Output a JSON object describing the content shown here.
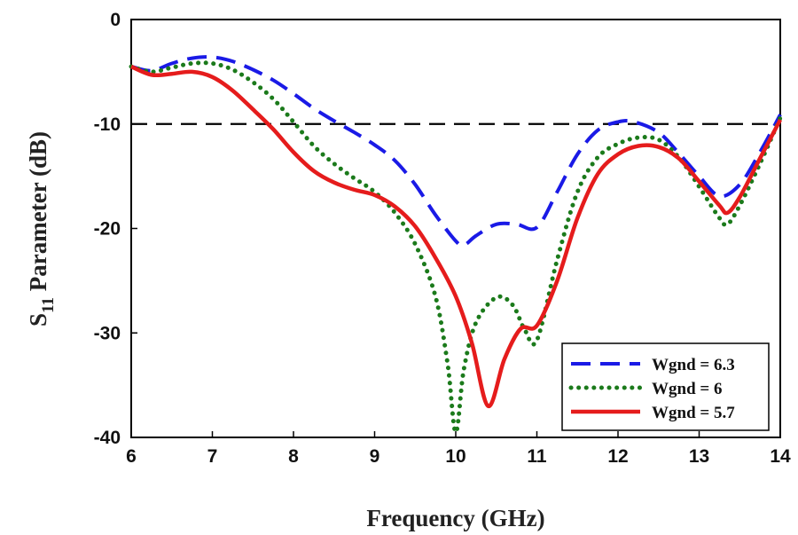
{
  "chart_data": {
    "type": "line",
    "xlabel": "Frequency (GHz)",
    "ylabel": {
      "prefix": "S",
      "subscript": "11",
      "suffix": " Parameter (dB)"
    },
    "xlim": [
      6,
      14
    ],
    "ylim": [
      -40,
      0
    ],
    "xticks": [
      6,
      7,
      8,
      9,
      10,
      11,
      12,
      13,
      14
    ],
    "yticks": [
      0,
      -10,
      -20,
      -30,
      -40
    ],
    "grid": false,
    "reference_line": {
      "y": -10,
      "style": "dashed",
      "color": "#000000"
    },
    "legend_position": "bottom-right",
    "series": [
      {
        "name": "Wgnd = 6.3",
        "color": "#1a1ae6",
        "style": "dashed",
        "x": [
          6.0,
          6.25,
          6.5,
          6.75,
          7.0,
          7.25,
          7.5,
          7.75,
          8.0,
          8.25,
          8.5,
          8.75,
          9.0,
          9.25,
          9.5,
          9.75,
          10.0,
          10.1,
          10.25,
          10.5,
          10.75,
          11.0,
          11.25,
          11.5,
          11.75,
          12.0,
          12.2,
          12.5,
          12.75,
          13.0,
          13.25,
          13.5,
          13.75,
          14.0
        ],
        "y": [
          -4.5,
          -4.9,
          -4.2,
          -3.7,
          -3.6,
          -4.0,
          -4.8,
          -5.8,
          -7.1,
          -8.5,
          -9.7,
          -10.8,
          -12.0,
          -13.5,
          -15.8,
          -18.7,
          -21.2,
          -21.6,
          -20.7,
          -19.6,
          -19.6,
          -19.9,
          -16.5,
          -12.9,
          -10.6,
          -9.8,
          -9.8,
          -10.8,
          -12.8,
          -15.0,
          -16.9,
          -15.8,
          -12.7,
          -9.1
        ]
      },
      {
        "name": "Wgnd = 6",
        "color": "#1b7a1b",
        "style": "dotted",
        "x": [
          6.0,
          6.25,
          6.5,
          6.75,
          7.0,
          7.25,
          7.5,
          7.75,
          8.0,
          8.25,
          8.5,
          8.75,
          9.0,
          9.25,
          9.5,
          9.75,
          9.9,
          10.0,
          10.1,
          10.25,
          10.5,
          10.7,
          10.85,
          11.0,
          11.25,
          11.5,
          11.75,
          12.0,
          12.25,
          12.5,
          12.75,
          13.0,
          13.25,
          13.35,
          13.5,
          13.75,
          14.0
        ],
        "y": [
          -4.5,
          -5.0,
          -4.6,
          -4.2,
          -4.2,
          -4.8,
          -6.0,
          -7.6,
          -9.8,
          -12.1,
          -13.8,
          -15.2,
          -16.5,
          -18.5,
          -21.5,
          -26.5,
          -33.0,
          -39.5,
          -33.5,
          -29.0,
          -26.6,
          -27.3,
          -29.7,
          -30.7,
          -23.0,
          -16.5,
          -13.2,
          -11.9,
          -11.3,
          -11.5,
          -13.2,
          -16.0,
          -19.0,
          -19.6,
          -17.8,
          -13.8,
          -9.4
        ]
      },
      {
        "name": "Wgnd = 5.7",
        "color": "#e51c1c",
        "style": "solid",
        "x": [
          6.0,
          6.25,
          6.5,
          6.75,
          7.0,
          7.25,
          7.5,
          7.75,
          8.0,
          8.25,
          8.5,
          8.75,
          9.0,
          9.25,
          9.5,
          9.75,
          10.0,
          10.2,
          10.4,
          10.6,
          10.8,
          11.0,
          11.25,
          11.5,
          11.75,
          12.0,
          12.25,
          12.5,
          12.75,
          13.0,
          13.25,
          13.35,
          13.5,
          13.75,
          14.0
        ],
        "y": [
          -4.5,
          -5.3,
          -5.2,
          -5.0,
          -5.5,
          -6.8,
          -8.6,
          -10.5,
          -12.7,
          -14.5,
          -15.6,
          -16.3,
          -16.8,
          -17.9,
          -19.8,
          -22.8,
          -26.5,
          -31.0,
          -37.0,
          -32.5,
          -29.6,
          -29.3,
          -25.0,
          -19.0,
          -14.8,
          -12.9,
          -12.1,
          -12.2,
          -13.3,
          -15.5,
          -17.8,
          -18.5,
          -17.0,
          -13.3,
          -9.6
        ]
      }
    ]
  }
}
